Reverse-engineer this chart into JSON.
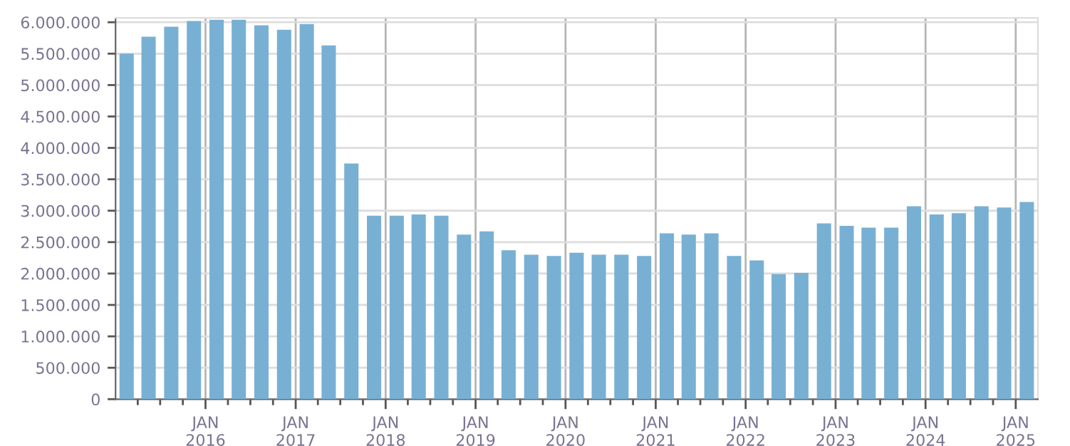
{
  "chart_data": {
    "type": "bar",
    "color": "#78b0d3",
    "x": [
      "2015-02-15",
      "2015-05-15",
      "2015-08-15",
      "2015-11-15",
      "2016-02-15",
      "2016-05-15",
      "2016-08-15",
      "2016-11-15",
      "2017-02-15",
      "2017-05-15",
      "2017-08-15",
      "2017-11-15",
      "2018-02-15",
      "2018-05-15",
      "2018-08-15",
      "2018-11-15",
      "2019-02-15",
      "2019-05-15",
      "2019-08-15",
      "2019-11-15",
      "2020-02-15",
      "2020-05-15",
      "2020-08-15",
      "2020-11-15",
      "2021-02-15",
      "2021-05-15",
      "2021-08-15",
      "2021-11-15",
      "2022-02-15",
      "2022-05-15",
      "2022-08-15",
      "2022-11-15",
      "2023-02-15",
      "2023-05-15",
      "2023-08-15",
      "2023-11-15",
      "2024-02-15",
      "2024-05-15",
      "2024-08-15",
      "2024-11-15",
      "2025-02-15"
    ],
    "values": [
      5500000,
      5770000,
      5930000,
      6020000,
      6040000,
      6040000,
      5950000,
      5880000,
      5970000,
      5630000,
      3750000,
      2920000,
      2920000,
      2940000,
      2920000,
      2620000,
      2670000,
      2370000,
      2300000,
      2280000,
      2330000,
      2300000,
      2300000,
      2280000,
      2640000,
      2620000,
      2640000,
      2280000,
      2210000,
      1990000,
      2010000,
      2800000,
      2760000,
      2730000,
      2730000,
      3070000,
      2940000,
      2960000,
      3070000,
      3050000,
      3140000
    ],
    "xlim": [
      "2015-01-01",
      "2025-04-01"
    ],
    "xticks": [
      {
        "value": "2015-04-01",
        "label": null
      },
      {
        "value": "2015-07-01",
        "label": null
      },
      {
        "value": "2015-10-01",
        "label": null
      },
      {
        "value": "2016-01-01",
        "label": "JAN\n2016"
      },
      {
        "value": "2016-04-01",
        "label": null
      },
      {
        "value": "2016-07-01",
        "label": null
      },
      {
        "value": "2016-10-01",
        "label": null
      },
      {
        "value": "2017-01-01",
        "label": "JAN\n2017"
      },
      {
        "value": "2017-04-01",
        "label": null
      },
      {
        "value": "2017-07-01",
        "label": null
      },
      {
        "value": "2017-10-01",
        "label": null
      },
      {
        "value": "2018-01-01",
        "label": "JAN\n2018"
      },
      {
        "value": "2018-04-01",
        "label": null
      },
      {
        "value": "2018-07-01",
        "label": null
      },
      {
        "value": "2018-10-01",
        "label": null
      },
      {
        "value": "2019-01-01",
        "label": "JAN\n2019"
      },
      {
        "value": "2019-04-01",
        "label": null
      },
      {
        "value": "2019-07-01",
        "label": null
      },
      {
        "value": "2019-10-01",
        "label": null
      },
      {
        "value": "2020-01-01",
        "label": "JAN\n2020"
      },
      {
        "value": "2020-04-01",
        "label": null
      },
      {
        "value": "2020-07-01",
        "label": null
      },
      {
        "value": "2020-10-01",
        "label": null
      },
      {
        "value": "2021-01-01",
        "label": "JAN\n2021"
      },
      {
        "value": "2021-04-01",
        "label": null
      },
      {
        "value": "2021-07-01",
        "label": null
      },
      {
        "value": "2021-10-01",
        "label": null
      },
      {
        "value": "2022-01-01",
        "label": "JAN\n2022"
      },
      {
        "value": "2022-04-01",
        "label": null
      },
      {
        "value": "2022-07-01",
        "label": null
      },
      {
        "value": "2022-10-01",
        "label": null
      },
      {
        "value": "2023-01-01",
        "label": "JAN\n2023"
      },
      {
        "value": "2023-04-01",
        "label": null
      },
      {
        "value": "2023-07-01",
        "label": null
      },
      {
        "value": "2023-10-01",
        "label": null
      },
      {
        "value": "2024-01-01",
        "label": "JAN\n2024"
      },
      {
        "value": "2024-04-01",
        "label": null
      },
      {
        "value": "2024-07-01",
        "label": null
      },
      {
        "value": "2024-10-01",
        "label": null
      },
      {
        "value": "2025-01-01",
        "label": "JAN\n2025"
      }
    ],
    "ylim": [
      0,
      6070000
    ],
    "yticks": [
      {
        "value": 0,
        "label": "0"
      },
      {
        "value": 500000,
        "label": "500.000"
      },
      {
        "value": 1000000,
        "label": "1.000.000"
      },
      {
        "value": 1500000,
        "label": "1.500.000"
      },
      {
        "value": 2000000,
        "label": "2.000.000"
      },
      {
        "value": 2500000,
        "label": "2.500.000"
      },
      {
        "value": 3000000,
        "label": "3.000.000"
      },
      {
        "value": 3500000,
        "label": "3.500.000"
      },
      {
        "value": 4000000,
        "label": "4.000.000"
      },
      {
        "value": 4500000,
        "label": "4.500.000"
      },
      {
        "value": 5000000,
        "label": "5.000.000"
      },
      {
        "value": 5500000,
        "label": "5.500.000"
      },
      {
        "value": 6000000,
        "label": "6.000.000"
      }
    ],
    "grid": true
  }
}
